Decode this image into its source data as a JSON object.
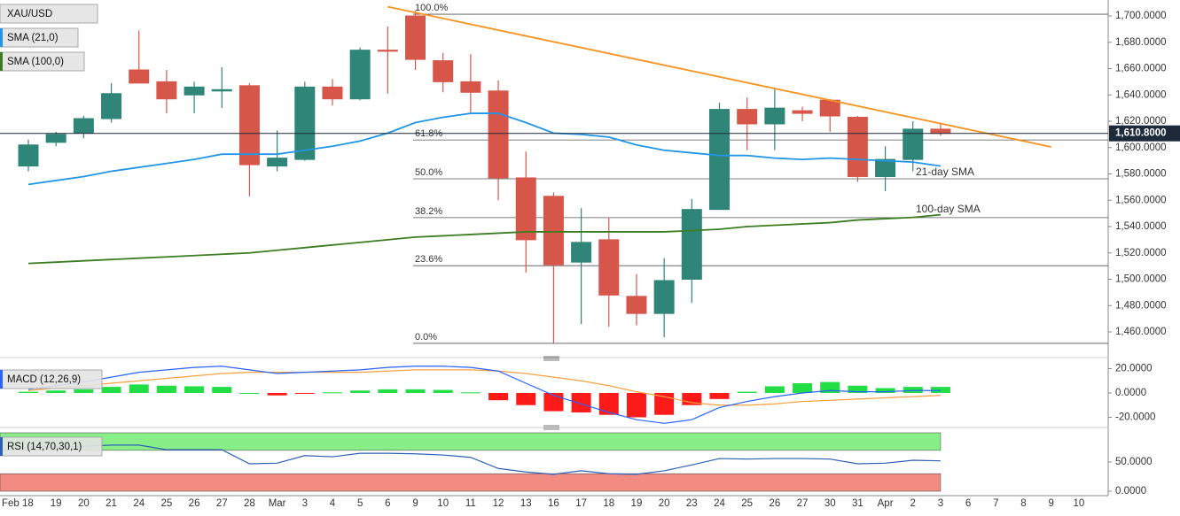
{
  "chart_data": [
    {
      "type": "candlestick",
      "symbol": "XAU/USD",
      "categories": [
        "Feb 18",
        "19",
        "20",
        "21",
        "24",
        "25",
        "26",
        "27",
        "28",
        "Mar",
        "3",
        "4",
        "5",
        "6",
        "9",
        "10",
        "11",
        "12",
        "13",
        "16",
        "17",
        "18",
        "19",
        "20",
        "23",
        "24",
        "25",
        "26",
        "27",
        "30",
        "31",
        "Apr",
        "2",
        "3",
        "6",
        "7",
        "8",
        "9",
        "10"
      ],
      "open": [
        1586,
        1604,
        1611,
        1622,
        1659,
        1650,
        1640,
        1643,
        1647,
        1586,
        1591,
        1646,
        1637,
        1674,
        1700,
        1666,
        1650,
        1643,
        1577,
        1563,
        1513,
        1530,
        1487,
        1474,
        1500,
        1553,
        1629,
        1618,
        1628,
        1636,
        1623,
        1578,
        1591,
        1614,
        null,
        null,
        null,
        null,
        null
      ],
      "high": [
        1606,
        1612,
        1624,
        1649,
        1689,
        1659,
        1650,
        1661,
        1649,
        1613,
        1650,
        1652,
        1676,
        1692,
        1704,
        1672,
        1671,
        1651,
        1597,
        1566,
        1554,
        1547,
        1504,
        1516,
        1561,
        1634,
        1638,
        1645,
        1631,
        1637,
        1624,
        1601,
        1620,
        1619,
        null,
        null,
        null,
        null,
        null
      ],
      "low": [
        1582,
        1601,
        1607,
        1619,
        1650,
        1626,
        1626,
        1630,
        1563,
        1582,
        1590,
        1632,
        1636,
        1641,
        1659,
        1642,
        1626,
        1560,
        1505,
        1451,
        1466,
        1464,
        1465,
        1456,
        1482,
        1553,
        1598,
        1598,
        1620,
        1612,
        1574,
        1567,
        1582,
        1609,
        null,
        null,
        null,
        null,
        null
      ],
      "close": [
        1602,
        1610,
        1622,
        1641,
        1649,
        1637,
        1646,
        1644,
        1587,
        1592,
        1646,
        1637,
        1674,
        1674,
        1667,
        1650,
        1642,
        1577,
        1530,
        1511,
        1528,
        1488,
        1474,
        1499,
        1553,
        1629,
        1618,
        1630,
        1626,
        1624,
        1578,
        1591,
        1614,
        1610.8,
        null,
        null,
        null,
        null,
        null
      ],
      "up_color": "#2f8577",
      "down_color": "#d6574a",
      "ylim": [
        1443.2,
        1712.1
      ],
      "yticks": [
        {
          "value": 1460,
          "label": "1,460.0000"
        },
        {
          "value": 1480,
          "label": "1,480.0000"
        },
        {
          "value": 1500,
          "label": "1,500.0000"
        },
        {
          "value": 1520,
          "label": "1,520.0000"
        },
        {
          "value": 1540,
          "label": "1,540.0000"
        },
        {
          "value": 1560,
          "label": "1,560.0000"
        },
        {
          "value": 1580,
          "label": "1,580.0000"
        },
        {
          "value": 1600,
          "label": "1,600.0000"
        },
        {
          "value": 1620,
          "label": "1,620.0000"
        },
        {
          "value": 1640,
          "label": "1,640.0000"
        },
        {
          "value": 1660,
          "label": "1,660.0000"
        },
        {
          "value": 1680,
          "label": "1,680.0000"
        },
        {
          "value": 1700,
          "label": "1,700.0000"
        }
      ],
      "series": [
        {
          "name": "SMA (21,0)",
          "color": "#2196e6",
          "values": [
            1572,
            1575,
            1578,
            1582,
            1585,
            1588,
            1591,
            1595,
            1595,
            1595,
            1598,
            1601,
            1605,
            1611,
            1619,
            1623,
            1626,
            1626,
            1619,
            1611,
            1610,
            1608,
            1602,
            1598,
            1596,
            1594,
            1594,
            1592,
            1591,
            1592,
            1591,
            1590,
            1589,
            1586,
            null,
            null,
            null,
            null,
            null
          ]
        },
        {
          "name": "SMA (100,0)",
          "color": "#3c7d22",
          "values": [
            1512,
            1513,
            1514,
            1515,
            1516,
            1517,
            1518,
            1519,
            1520,
            1522,
            1524,
            1526,
            1528,
            1530,
            1532,
            1533,
            1534,
            1535,
            1536,
            1536,
            1536,
            1536,
            1536,
            1536,
            1537,
            1538,
            1540,
            1541,
            1542,
            1543,
            1545,
            1546,
            1547,
            1549,
            null,
            null,
            null,
            null,
            null
          ]
        }
      ],
      "annotations": [
        {
          "text": "21-day SMA",
          "color": "#2196e6"
        },
        {
          "text": "100-day SMA",
          "color": "#3c7d22"
        }
      ],
      "trendline": {
        "color": "#f7931e",
        "x": [
          13,
          37
        ],
        "values": [
          1707,
          1600.5
        ]
      },
      "fibonacci": {
        "labels": [
          "100.0%",
          "61.8%",
          "50.0%",
          "38.2%",
          "23.6%",
          "0.0%"
        ],
        "values": [
          1701.3,
          1605.8,
          1576.3,
          1546.8,
          1510.3,
          1451.3
        ]
      },
      "last_price": {
        "value": 1610.8,
        "label": "1,610.8000"
      }
    },
    {
      "type": "macd",
      "name": "MACD (12,26,9)",
      "macd_color": "#2962ff",
      "signal_color": "#f5a142",
      "positive_color": "#22dd44",
      "negative_color": "#ff1a1a",
      "macd": [
        3,
        6,
        9,
        13,
        17,
        19,
        21,
        22,
        19,
        16,
        17,
        18,
        19,
        21,
        22,
        22,
        21,
        18,
        8,
        -2,
        -9,
        -16,
        -22,
        -25,
        -22,
        -12,
        -7,
        -3,
        0,
        2,
        1,
        1,
        2,
        2,
        null,
        null,
        null,
        null,
        null
      ],
      "signal": [
        2,
        4,
        6,
        8,
        10,
        12,
        14,
        16,
        17,
        17,
        17,
        17,
        17,
        18,
        19,
        19,
        19,
        18,
        16,
        13,
        10,
        6,
        1,
        -3,
        -8,
        -10,
        -10,
        -9,
        -7,
        -6,
        -5,
        -4,
        -3,
        -2,
        null,
        null,
        null,
        null,
        null
      ],
      "histogram": [
        1,
        2,
        3,
        5,
        7,
        6,
        5.5,
        5,
        0,
        -2,
        -0.5,
        0.5,
        2,
        3,
        3,
        2.5,
        0.5,
        -6,
        -10,
        -15,
        -16,
        -18,
        -20,
        -18,
        -10,
        -5,
        1,
        5.5,
        8,
        9,
        6,
        4,
        5,
        5,
        null,
        null,
        null,
        null,
        null
      ],
      "ylim": [
        -25.5,
        26.2
      ],
      "yticks": [
        {
          "value": -20,
          "label": "-20.0000"
        },
        {
          "value": 0,
          "label": "0.0000"
        },
        {
          "value": 20,
          "label": "20.0000"
        }
      ]
    },
    {
      "type": "rsi",
      "name": "RSI (14,70,30,1)",
      "color": "#2c5fb5",
      "values": [
        76,
        76,
        77,
        79,
        79,
        71,
        71,
        71,
        47,
        48,
        61,
        59,
        65,
        65,
        64,
        62,
        58,
        39,
        33,
        29,
        35,
        30,
        29,
        35,
        45,
        56,
        55,
        56,
        56,
        55,
        47,
        48,
        53,
        52,
        null,
        null,
        null,
        null,
        null
      ],
      "bands": [
        {
          "from": 70,
          "to": 100,
          "color": "#88ee88"
        },
        {
          "from": 0,
          "to": 30,
          "color": "#f28b82"
        }
      ],
      "ylim": [
        -4.5,
        101.5
      ],
      "yticks": [
        {
          "value": 0,
          "label": "0.0000"
        },
        {
          "value": 50,
          "label": "50.0000"
        }
      ]
    }
  ]
}
